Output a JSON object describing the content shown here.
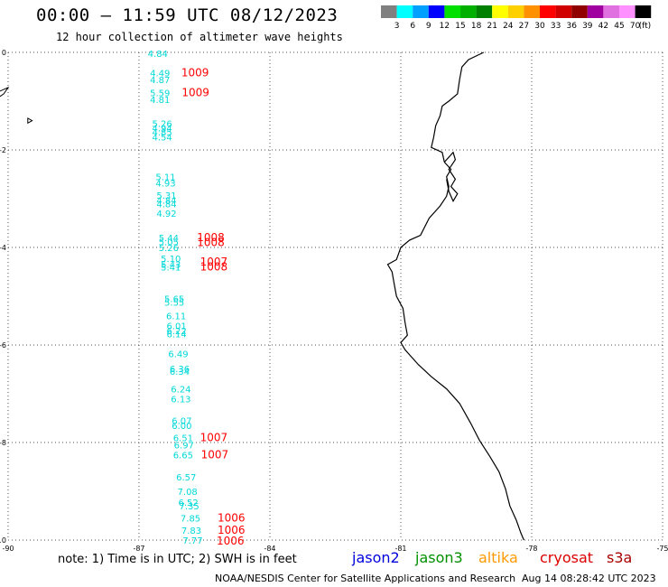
{
  "header": {
    "title": "00:00 — 11:59 UTC 08/12/2023",
    "subtitle": "12 hour collection of altimeter wave heights"
  },
  "legend": {
    "unit": "(ft)",
    "bins": [
      {
        "label": "3",
        "color": "#808080"
      },
      {
        "label": "6",
        "color": "#00ffff"
      },
      {
        "label": "9",
        "color": "#00a0ff"
      },
      {
        "label": "12",
        "color": "#0000ff"
      },
      {
        "label": "15",
        "color": "#00e000"
      },
      {
        "label": "18",
        "color": "#00b000"
      },
      {
        "label": "21",
        "color": "#008000"
      },
      {
        "label": "24",
        "color": "#ffff00"
      },
      {
        "label": "27",
        "color": "#ffd000"
      },
      {
        "label": "30",
        "color": "#ff9000"
      },
      {
        "label": "33",
        "color": "#ff0000"
      },
      {
        "label": "36",
        "color": "#d00000"
      },
      {
        "label": "39",
        "color": "#900000"
      },
      {
        "label": "42",
        "color": "#a000a0"
      },
      {
        "label": "45",
        "color": "#e070e0"
      },
      {
        "label": "70",
        "color": "#ff90ff"
      },
      {
        "label": "",
        "color": "#000000"
      }
    ]
  },
  "axes": {
    "lon_ticks": [
      "-90",
      "-87",
      "-84",
      "-81",
      "-78",
      "-75"
    ],
    "lat_ticks": [
      "0",
      "-2",
      "-4",
      "-6",
      "-8",
      "-10"
    ]
  },
  "colors": {
    "wave_label": "#00d8d8",
    "pressure_label": "#ff0000",
    "grid": "#555555"
  },
  "wave_heights": [
    {
      "v": "4.84",
      "lon": -86.8,
      "lat": -0.02
    },
    {
      "v": "4.49",
      "lon": -86.75,
      "lat": -0.42
    },
    {
      "v": "4.87",
      "lon": -86.75,
      "lat": -0.56
    },
    {
      "v": "5.59",
      "lon": -86.75,
      "lat": -0.82
    },
    {
      "v": "4.81",
      "lon": -86.75,
      "lat": -0.96
    },
    {
      "v": "5.26",
      "lon": -86.7,
      "lat": -1.45
    },
    {
      "v": "4.94",
      "lon": -86.7,
      "lat": -1.55
    },
    {
      "v": "4.85",
      "lon": -86.7,
      "lat": -1.63
    },
    {
      "v": "4.54",
      "lon": -86.7,
      "lat": -1.73
    },
    {
      "v": "5.11",
      "lon": -86.62,
      "lat": -2.55
    },
    {
      "v": "4.93",
      "lon": -86.62,
      "lat": -2.68
    },
    {
      "v": "5.31",
      "lon": -86.6,
      "lat": -2.93
    },
    {
      "v": "4.84",
      "lon": -86.6,
      "lat": -3.03
    },
    {
      "v": "4.84",
      "lon": -86.6,
      "lat": -3.1
    },
    {
      "v": "4.92",
      "lon": -86.6,
      "lat": -3.3
    },
    {
      "v": "5.44",
      "lon": -86.55,
      "lat": -3.8
    },
    {
      "v": "5.05",
      "lon": -86.55,
      "lat": -3.88
    },
    {
      "v": "5.26",
      "lon": -86.55,
      "lat": -4.0
    },
    {
      "v": "5.10",
      "lon": -86.5,
      "lat": -4.22
    },
    {
      "v": "5.43",
      "lon": -86.5,
      "lat": -4.34
    },
    {
      "v": "5.41",
      "lon": -86.5,
      "lat": -4.4
    },
    {
      "v": "5.65",
      "lon": -86.42,
      "lat": -5.05
    },
    {
      "v": "5.55",
      "lon": -86.42,
      "lat": -5.12
    },
    {
      "v": "6.11",
      "lon": -86.38,
      "lat": -5.4
    },
    {
      "v": "6.01",
      "lon": -86.37,
      "lat": -5.6
    },
    {
      "v": "6.22",
      "lon": -86.37,
      "lat": -5.7
    },
    {
      "v": "6.14",
      "lon": -86.37,
      "lat": -5.77
    },
    {
      "v": "6.49",
      "lon": -86.33,
      "lat": -6.18
    },
    {
      "v": "6.36",
      "lon": -86.3,
      "lat": -6.48
    },
    {
      "v": "6.34",
      "lon": -86.3,
      "lat": -6.54
    },
    {
      "v": "6.24",
      "lon": -86.27,
      "lat": -6.9
    },
    {
      "v": "6.13",
      "lon": -86.27,
      "lat": -7.1
    },
    {
      "v": "6.07",
      "lon": -86.25,
      "lat": -7.55
    },
    {
      "v": "6.00",
      "lon": -86.25,
      "lat": -7.65
    },
    {
      "v": "6.51",
      "lon": -86.22,
      "lat": -7.9
    },
    {
      "v": "6.97",
      "lon": -86.2,
      "lat": -8.05
    },
    {
      "v": "6.65",
      "lon": -86.22,
      "lat": -8.25
    },
    {
      "v": "6.57",
      "lon": -86.15,
      "lat": -8.7
    },
    {
      "v": "7.08",
      "lon": -86.12,
      "lat": -9.0
    },
    {
      "v": "6.52",
      "lon": -86.1,
      "lat": -9.22
    },
    {
      "v": "7.35",
      "lon": -86.08,
      "lat": -9.3
    },
    {
      "v": "7.85",
      "lon": -86.05,
      "lat": -9.55
    },
    {
      "v": "7.83",
      "lon": -86.03,
      "lat": -9.8
    },
    {
      "v": "7.77",
      "lon": -86.0,
      "lat": -10.0
    }
  ],
  "pressures": [
    {
      "v": "1009",
      "lon": -86.03,
      "lat": -0.42
    },
    {
      "v": "1009",
      "lon": -86.02,
      "lat": -0.82
    },
    {
      "v": "1008",
      "lon": -85.67,
      "lat": -3.8
    },
    {
      "v": "1008",
      "lon": -85.67,
      "lat": -3.9
    },
    {
      "v": "1007",
      "lon": -85.6,
      "lat": -4.3
    },
    {
      "v": "1008",
      "lon": -85.6,
      "lat": -4.4
    },
    {
      "v": "1007",
      "lon": -85.6,
      "lat": -7.9
    },
    {
      "v": "1007",
      "lon": -85.58,
      "lat": -8.25
    },
    {
      "v": "1006",
      "lon": -85.2,
      "lat": -9.55
    },
    {
      "v": "1006",
      "lon": -85.2,
      "lat": -9.8
    },
    {
      "v": "1006",
      "lon": -85.22,
      "lat": -10.02
    }
  ],
  "coastline": [
    [
      -79.1,
      0.0
    ],
    [
      -79.45,
      -0.15
    ],
    [
      -79.6,
      -0.3
    ],
    [
      -79.65,
      -0.55
    ],
    [
      -79.7,
      -0.85
    ],
    [
      -79.9,
      -1.0
    ],
    [
      -80.05,
      -1.1
    ],
    [
      -80.1,
      -1.3
    ],
    [
      -80.2,
      -1.5
    ],
    [
      -80.25,
      -1.75
    ],
    [
      -80.3,
      -1.95
    ],
    [
      -80.05,
      -2.05
    ],
    [
      -80.0,
      -2.25
    ],
    [
      -79.85,
      -2.4
    ],
    [
      -79.95,
      -2.55
    ],
    [
      -79.9,
      -2.75
    ],
    [
      -79.95,
      -2.95
    ],
    [
      -80.1,
      -3.15
    ],
    [
      -80.35,
      -3.4
    ],
    [
      -80.55,
      -3.75
    ],
    [
      -80.8,
      -3.85
    ],
    [
      -81.0,
      -4.0
    ],
    [
      -81.1,
      -4.25
    ],
    [
      -81.3,
      -4.35
    ],
    [
      -81.2,
      -4.5
    ],
    [
      -81.15,
      -4.75
    ],
    [
      -81.1,
      -5.0
    ],
    [
      -80.95,
      -5.25
    ],
    [
      -80.9,
      -5.55
    ],
    [
      -80.85,
      -5.8
    ],
    [
      -81.0,
      -5.95
    ],
    [
      -80.9,
      -6.1
    ],
    [
      -80.6,
      -6.4
    ],
    [
      -80.3,
      -6.65
    ],
    [
      -79.95,
      -6.9
    ],
    [
      -79.65,
      -7.2
    ],
    [
      -79.4,
      -7.6
    ],
    [
      -79.2,
      -7.95
    ],
    [
      -78.95,
      -8.3
    ],
    [
      -78.75,
      -8.6
    ],
    [
      -78.6,
      -8.95
    ],
    [
      -78.5,
      -9.3
    ],
    [
      -78.35,
      -9.6
    ],
    [
      -78.25,
      -9.85
    ],
    [
      -78.18,
      -10.0
    ]
  ],
  "gulf": [
    [
      -80.0,
      -2.25
    ],
    [
      -79.8,
      -2.05
    ],
    [
      -79.75,
      -2.2
    ],
    [
      -79.9,
      -2.4
    ],
    [
      -79.75,
      -2.6
    ],
    [
      -79.85,
      -2.75
    ],
    [
      -79.7,
      -2.9
    ],
    [
      -79.8,
      -3.05
    ],
    [
      -79.9,
      -2.85
    ],
    [
      -79.95,
      -2.6
    ]
  ],
  "islands": [
    [
      [
        -90.35,
        -1.0
      ],
      [
        -90.1,
        -0.85
      ],
      [
        -90.0,
        -0.72
      ],
      [
        -90.2,
        -0.8
      ],
      [
        -90.45,
        -0.95
      ]
    ],
    [
      [
        -89.55,
        -1.35
      ],
      [
        -89.45,
        -1.4
      ],
      [
        -89.55,
        -1.45
      ]
    ]
  ],
  "footer": {
    "note": "note: 1) Time is in UTC; 2) SWH is in feet",
    "satellites": [
      {
        "name": "jason2",
        "color": "#0000dd"
      },
      {
        "name": "jason3",
        "color": "#009000"
      },
      {
        "name": "altika",
        "color": "#ff9900"
      },
      {
        "name": "cryosat",
        "color": "#dd0000"
      },
      {
        "name": "s3a",
        "color": "#aa0000"
      }
    ],
    "credit": "NOAA/NESDIS Center for Satellite Applications and Research",
    "timestamp": "Aug 14 08:28:42 UTC 2023"
  }
}
